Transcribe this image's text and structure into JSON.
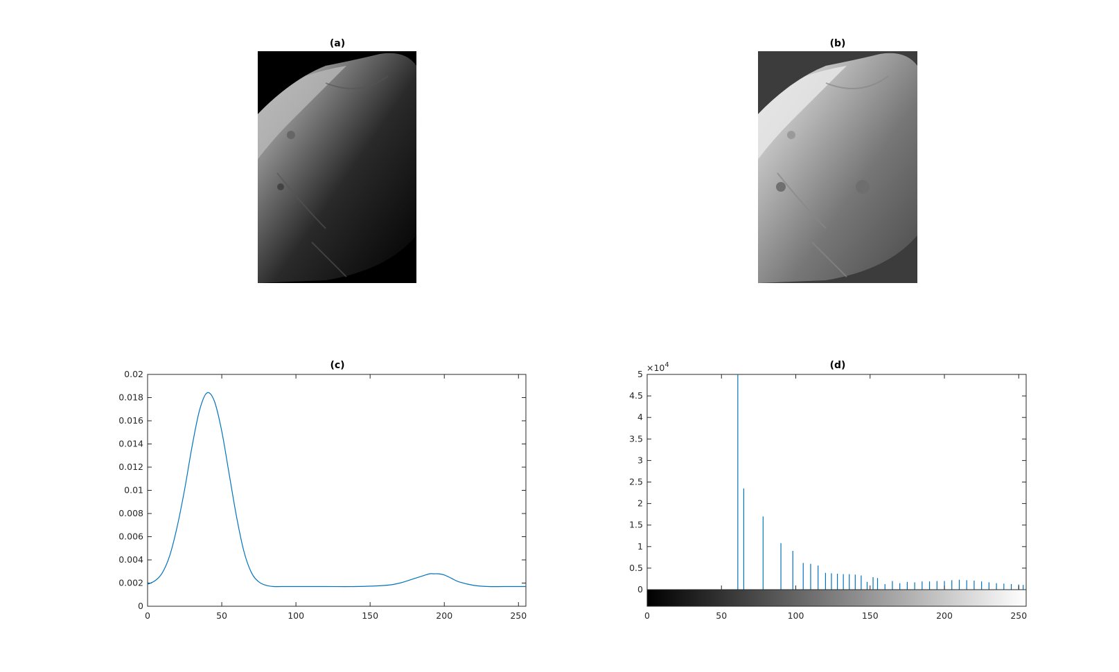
{
  "figure": {
    "panel_a_title": "(a)",
    "panel_b_title": "(b)"
  },
  "chart_data": [
    {
      "type": "line",
      "title": "(c)",
      "xlabel": "",
      "ylabel": "",
      "xlim": [
        0,
        255
      ],
      "ylim": [
        0,
        0.02
      ],
      "xticks": [
        0,
        50,
        100,
        150,
        200,
        250
      ],
      "xtick_labels": [
        "0",
        "50",
        "100",
        "150",
        "200",
        "250"
      ],
      "yticks": [
        0,
        0.002,
        0.004,
        0.006,
        0.008,
        0.01,
        0.012,
        0.014,
        0.016,
        0.018,
        0.02
      ],
      "ytick_labels": [
        "0",
        "0.002",
        "0.004",
        "0.006",
        "0.008",
        "0.01",
        "0.012",
        "0.014",
        "0.016",
        "0.018",
        "0.02"
      ],
      "grid": false,
      "color": "#0072BD",
      "series": [
        {
          "x": [
            0,
            5,
            10,
            15,
            20,
            25,
            30,
            35,
            40,
            45,
            50,
            55,
            60,
            65,
            70,
            75,
            80,
            85,
            90,
            100,
            120,
            140,
            160,
            170,
            180,
            185,
            190,
            193,
            196,
            200,
            205,
            210,
            220,
            230,
            240,
            255
          ],
          "values": [
            0.0019,
            0.0022,
            0.0029,
            0.0044,
            0.0069,
            0.0101,
            0.0138,
            0.0169,
            0.0184,
            0.0177,
            0.0151,
            0.0114,
            0.0077,
            0.0047,
            0.0029,
            0.0021,
            0.0018,
            0.0017,
            0.0017,
            0.0017,
            0.0017,
            0.0017,
            0.0018,
            0.002,
            0.0024,
            0.0026,
            0.0028,
            0.0028,
            0.0028,
            0.0027,
            0.0024,
            0.0021,
            0.0018,
            0.0017,
            0.0017,
            0.0017
          ]
        }
      ]
    },
    {
      "type": "bar",
      "title": "(d)",
      "xlabel": "",
      "ylabel": "",
      "xlim": [
        0,
        255
      ],
      "ylim": [
        0,
        50000
      ],
      "y_exponent_label": "×10",
      "y_exponent": "4",
      "xticks": [
        0,
        50,
        100,
        150,
        200,
        250
      ],
      "xtick_labels": [
        "0",
        "50",
        "100",
        "150",
        "200",
        "250"
      ],
      "yticks": [
        0,
        5000,
        10000,
        15000,
        20000,
        25000,
        30000,
        35000,
        40000,
        45000,
        50000
      ],
      "ytick_labels": [
        "0",
        "0.5",
        "1",
        "1.5",
        "2",
        "2.5",
        "3",
        "3.5",
        "4",
        "4.5",
        "5"
      ],
      "grid": false,
      "color": "#0072BD",
      "colorbar": "gray 0-255",
      "x": [
        61,
        65,
        78,
        90,
        98,
        105,
        110,
        115,
        120,
        124,
        128,
        132,
        136,
        140,
        144,
        148,
        152,
        155,
        160,
        165,
        170,
        175,
        180,
        185,
        190,
        195,
        200,
        205,
        210,
        215,
        220,
        225,
        230,
        235,
        240,
        245,
        250,
        253
      ],
      "values": [
        50000,
        23500,
        17000,
        10800,
        9000,
        6200,
        6000,
        5600,
        3900,
        3800,
        3700,
        3600,
        3600,
        3500,
        3300,
        1800,
        2900,
        2700,
        1300,
        2000,
        1500,
        1800,
        1700,
        1900,
        1900,
        2000,
        2000,
        2200,
        2300,
        2200,
        2100,
        1900,
        1700,
        1500,
        1400,
        1300,
        1200,
        1100
      ]
    }
  ]
}
